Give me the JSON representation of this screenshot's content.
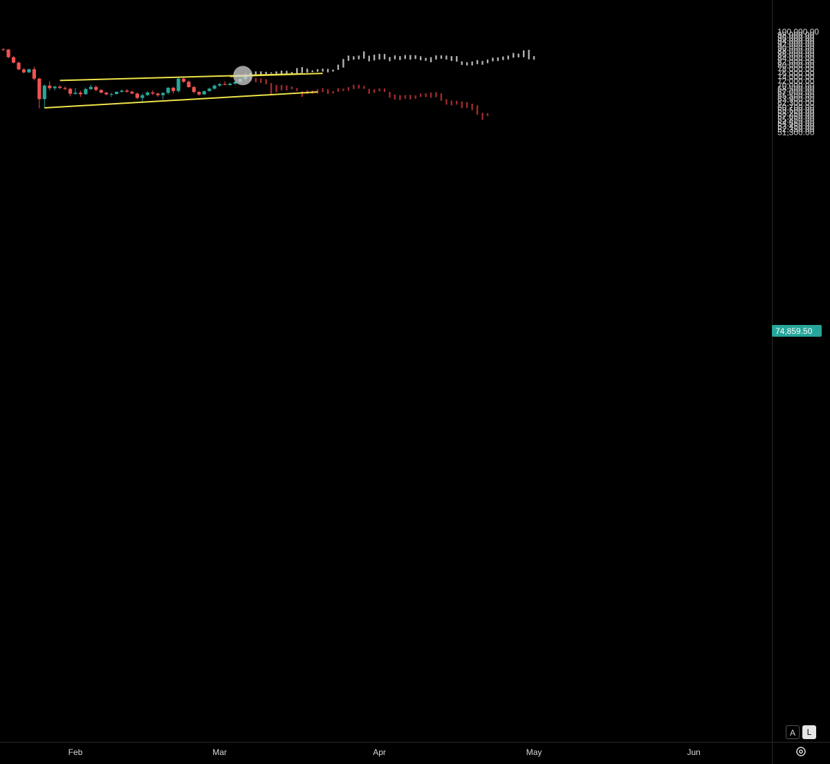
{
  "colors": {
    "up": "#26a69a",
    "down": "#ef5350",
    "projection_up": "#b2b2b2",
    "projection_down": "#a12b2b",
    "trendline": "#f0e44a",
    "last_price_bg": "#26a69a",
    "axis_line": "#2a2a2a"
  },
  "axis": {
    "y_ticks": [
      "100,000.00",
      "98,000.00",
      "96,000.00",
      "94,000.00",
      "92,000.00",
      "90,000.00",
      "88,000.00",
      "86,000.00",
      "84,000.00",
      "82,000.00",
      "80,000.00",
      "78,000.00",
      "76,000.00",
      "74,000.00",
      "72,000.00",
      "70,000.00",
      "68,500.00",
      "67,000.00",
      "65,500.00",
      "63,900.00",
      "62,300.00",
      "60,700.00",
      "59,500.00",
      "58,250.00",
      "57,050.00",
      "55,850.00",
      "54,650.00",
      "53,450.00",
      "52,350.00",
      "51,300.00"
    ],
    "x_ticks": [
      "Feb",
      "Mar",
      "Apr",
      "May",
      "Jun"
    ],
    "last_price": "74,859.50"
  },
  "buttons": {
    "auto": "A",
    "log": "L"
  },
  "icons": {
    "settings": "settings-gear-icon"
  },
  "chart_data": {
    "type": "candlestick",
    "scale": "log",
    "price_range": [
      51300,
      101000
    ],
    "x_axis": [
      "Feb",
      "Mar",
      "Apr",
      "May",
      "Jun"
    ],
    "last_price": 74859.5,
    "candles_day_offset_from_jan_1": 1,
    "candles": [
      [
        90800,
        91500,
        90400,
        91300
      ],
      [
        91300,
        92300,
        90900,
        92000
      ],
      [
        92000,
        96200,
        91800,
        95900
      ],
      [
        95900,
        97400,
        95400,
        96600
      ],
      [
        96600,
        97100,
        94500,
        95400
      ],
      [
        95400,
        96100,
        94300,
        94800
      ],
      [
        94800,
        96300,
        94600,
        95100
      ],
      [
        95100,
        95600,
        92800,
        93400
      ],
      [
        93400,
        94100,
        91000,
        91700
      ],
      [
        91700,
        93200,
        87600,
        88100
      ],
      [
        88100,
        90300,
        87600,
        89300
      ],
      [
        89300,
        90000,
        88300,
        89700
      ],
      [
        89700,
        91100,
        88700,
        89600
      ],
      [
        89600,
        90300,
        88500,
        89000
      ],
      [
        89000,
        90300,
        86500,
        86800
      ],
      [
        86800,
        88800,
        86500,
        88600
      ],
      [
        88600,
        89600,
        87900,
        89000
      ],
      [
        89000,
        89800,
        88100,
        88900
      ],
      [
        88900,
        89300,
        83900,
        84500
      ],
      [
        84500,
        85100,
        81100,
        81500
      ],
      [
        81500,
        82000,
        77500,
        77900
      ],
      [
        77900,
        78600,
        75900,
        76400
      ],
      [
        76400,
        78300,
        76100,
        78000
      ],
      [
        78000,
        79300,
        72500,
        73300
      ],
      [
        73300,
        73700,
        60200,
        64000
      ],
      [
        64000,
        70600,
        60200,
        70000
      ],
      [
        70000,
        72000,
        67800,
        68800
      ],
      [
        68800,
        70000,
        67800,
        69500
      ],
      [
        69500,
        70100,
        68400,
        68900
      ],
      [
        68900,
        69600,
        67900,
        68500
      ],
      [
        68500,
        69000,
        65200,
        66300
      ],
      [
        66300,
        68900,
        65900,
        66800
      ],
      [
        66800,
        67600,
        65000,
        66100
      ],
      [
        66100,
        69100,
        65900,
        68400
      ],
      [
        68400,
        70400,
        68000,
        69400
      ],
      [
        69400,
        70000,
        67400,
        68000
      ],
      [
        68000,
        68400,
        66500,
        66800
      ],
      [
        66800,
        67200,
        65600,
        66100
      ],
      [
        66100,
        66800,
        65000,
        66200
      ],
      [
        66200,
        67300,
        66000,
        67200
      ],
      [
        67200,
        68200,
        66800,
        67700
      ],
      [
        67700,
        68400,
        66800,
        67200
      ],
      [
        67200,
        67800,
        66100,
        66400
      ],
      [
        66400,
        66900,
        64000,
        64500
      ],
      [
        64500,
        66400,
        62700,
        65700
      ],
      [
        65700,
        67400,
        65400,
        66900
      ],
      [
        66900,
        67800,
        65800,
        66400
      ],
      [
        66400,
        66800,
        65000,
        65700
      ],
      [
        65700,
        66900,
        63800,
        66700
      ],
      [
        66700,
        69300,
        65900,
        69000
      ],
      [
        69000,
        69500,
        66500,
        67500
      ],
      [
        67500,
        73800,
        66900,
        73300
      ],
      [
        73300,
        74000,
        71300,
        71800
      ],
      [
        71800,
        72400,
        69000,
        69300
      ],
      [
        69300,
        69900,
        66400,
        67100
      ],
      [
        67100,
        67500,
        65500,
        66000
      ],
      [
        66000,
        67600,
        65800,
        67500
      ],
      [
        67500,
        69100,
        67300,
        68600
      ],
      [
        68600,
        70500,
        68100,
        70000
      ],
      [
        70000,
        71300,
        69500,
        70700
      ],
      [
        70700,
        72000,
        70200,
        70300
      ],
      [
        70300,
        71400,
        70000,
        70900
      ],
      [
        70900,
        72100,
        70400,
        71700
      ],
      [
        71700,
        73500,
        71600,
        73200
      ],
      [
        73200,
        76300,
        72400,
        74859
      ]
    ],
    "projection_upper_bars": [
      [
        74700,
        76100
      ],
      [
        75200,
        76900
      ],
      [
        75300,
        76900
      ],
      [
        75600,
        76700
      ],
      [
        75800,
        76400
      ],
      [
        75700,
        76900
      ],
      [
        75600,
        77300
      ],
      [
        75300,
        77200
      ],
      [
        75200,
        76600
      ],
      [
        75400,
        78600
      ],
      [
        76100,
        79100
      ],
      [
        76300,
        78300
      ],
      [
        76500,
        77400
      ],
      [
        76700,
        78000
      ],
      [
        76800,
        78300
      ],
      [
        76400,
        78200
      ],
      [
        76800,
        77800
      ],
      [
        77700,
        80400
      ],
      [
        78900,
        83500
      ],
      [
        82500,
        85400
      ],
      [
        83100,
        85000
      ],
      [
        83300,
        85400
      ],
      [
        83700,
        87800
      ],
      [
        82200,
        85300
      ],
      [
        82700,
        85900
      ],
      [
        83200,
        86400
      ],
      [
        83300,
        86300
      ],
      [
        82300,
        84600
      ],
      [
        83300,
        85500
      ],
      [
        82900,
        85100
      ],
      [
        83500,
        85700
      ],
      [
        83100,
        85700
      ],
      [
        83500,
        85600
      ],
      [
        82800,
        85000
      ],
      [
        82500,
        84100
      ],
      [
        81700,
        84500
      ],
      [
        83200,
        85500
      ],
      [
        83600,
        85500
      ],
      [
        83200,
        85400
      ],
      [
        82400,
        85100
      ],
      [
        82000,
        85100
      ],
      [
        80300,
        82200
      ],
      [
        80000,
        81700
      ],
      [
        80000,
        82100
      ],
      [
        80700,
        82900
      ],
      [
        80400,
        82400
      ],
      [
        81200,
        83200
      ],
      [
        82200,
        84200
      ],
      [
        82400,
        84400
      ],
      [
        82900,
        84900
      ],
      [
        83200,
        85400
      ],
      [
        84200,
        86900
      ],
      [
        84400,
        86500
      ],
      [
        84500,
        88400
      ],
      [
        83300,
        88700
      ],
      [
        83100,
        85100
      ]
    ],
    "projection_lower_bars": [
      [
        72100,
        74200
      ],
      [
        71600,
        73600
      ],
      [
        71200,
        73400
      ],
      [
        70600,
        73000
      ],
      [
        65800,
        71200
      ],
      [
        67000,
        70300
      ],
      [
        67800,
        70300
      ],
      [
        67800,
        70100
      ],
      [
        68300,
        69600
      ],
      [
        67600,
        68900
      ],
      [
        65000,
        67400
      ],
      [
        66200,
        67900
      ],
      [
        66300,
        67800
      ],
      [
        66300,
        68300
      ],
      [
        67000,
        68800
      ],
      [
        66200,
        68400
      ],
      [
        66400,
        67500
      ],
      [
        67200,
        68800
      ],
      [
        67500,
        68600
      ],
      [
        67700,
        69300
      ],
      [
        68400,
        70400
      ],
      [
        68600,
        70400
      ],
      [
        68500,
        69800
      ],
      [
        66300,
        68500
      ],
      [
        66700,
        68400
      ],
      [
        67400,
        68700
      ],
      [
        67100,
        68700
      ],
      [
        64600,
        67100
      ],
      [
        63800,
        66000
      ],
      [
        63600,
        65700
      ],
      [
        64200,
        65700
      ],
      [
        63900,
        65800
      ],
      [
        64200,
        65600
      ],
      [
        64900,
        66400
      ],
      [
        64900,
        66500
      ],
      [
        64600,
        66800
      ],
      [
        64800,
        67000
      ],
      [
        63300,
        66500
      ],
      [
        61700,
        64000
      ],
      [
        61400,
        63400
      ],
      [
        61700,
        63300
      ],
      [
        60300,
        63000
      ],
      [
        60400,
        62700
      ],
      [
        59500,
        62100
      ],
      [
        57700,
        61400
      ],
      [
        55800,
        58400
      ],
      [
        57200,
        58300
      ]
    ],
    "trendlines": [
      {
        "name": "upper",
        "from": [
          29,
          72400
        ],
        "to": [
          76,
          75700
        ]
      },
      {
        "name": "lower",
        "from": [
          26,
          60400
        ],
        "to": [
          79,
          67100
        ]
      },
      {
        "name": "top-flag",
        "from": [
          62,
          74400
        ],
        "to": [
          80,
          75900
        ]
      }
    ],
    "marker": {
      "day": 64.5,
      "price": 74800
    }
  }
}
